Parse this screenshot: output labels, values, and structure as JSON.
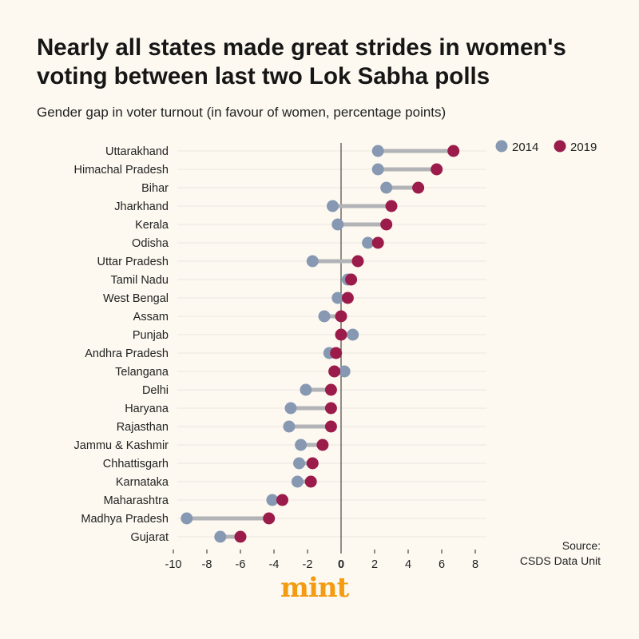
{
  "header": {
    "title": "Nearly all states made great strides in women's voting between last two Lok Sabha polls",
    "subtitle": "Gender gap in voter turnout (in favour of women, percentage points)"
  },
  "source": {
    "line1": "Source:",
    "line2": "CSDS Data Unit"
  },
  "logo": {
    "text": "mint"
  },
  "colors": {
    "c2014": "#8798b2",
    "c2019": "#9b1b4a",
    "connector": "#b2b3b7",
    "grid": "#ece8e1",
    "zero_line": "#222222"
  },
  "chart_data": {
    "type": "dumbbell",
    "title": "Nearly all states made great strides in women's voting between last two Lok Sabha polls",
    "subtitle": "Gender gap in voter turnout (in favour of women, percentage points)",
    "xlim": [
      -10,
      8
    ],
    "xticks": [
      -10,
      -8,
      -6,
      -4,
      -2,
      0,
      2,
      4,
      6,
      8
    ],
    "legend_position": "top-right",
    "categories": [
      "Uttarakhand",
      "Himachal Pradesh",
      "Bihar",
      "Jharkhand",
      "Kerala",
      "Odisha",
      "Uttar Pradesh",
      "Tamil Nadu",
      "West Bengal",
      "Assam",
      "Punjab",
      "Andhra Pradesh",
      "Telangana",
      "Delhi",
      "Haryana",
      "Rajasthan",
      "Jammu & Kashmir",
      "Chhattisgarh",
      "Karnataka",
      "Maharashtra",
      "Madhya Pradesh",
      "Gujarat"
    ],
    "series": [
      {
        "name": "2014",
        "values": [
          2.2,
          2.2,
          2.7,
          -0.5,
          -0.2,
          1.6,
          -1.7,
          0.4,
          -0.2,
          -1.0,
          0.7,
          -0.7,
          0.2,
          -2.1,
          -3.0,
          -3.1,
          -2.4,
          -2.5,
          -2.6,
          -4.1,
          -9.2,
          -7.2
        ]
      },
      {
        "name": "2019",
        "values": [
          6.7,
          5.7,
          4.6,
          3.0,
          2.7,
          2.2,
          1.0,
          0.6,
          0.4,
          0.0,
          0.0,
          -0.3,
          -0.4,
          -0.6,
          -0.6,
          -0.6,
          -1.1,
          -1.7,
          -1.8,
          -3.5,
          -4.3,
          -6.0
        ]
      }
    ]
  }
}
